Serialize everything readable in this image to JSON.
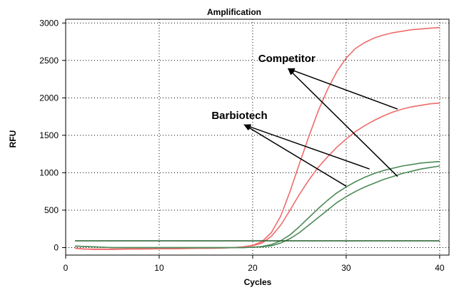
{
  "chart_data": {
    "type": "line",
    "title": "Amplification",
    "xlabel": "Cycles",
    "ylabel": "RFU",
    "xlim": [
      0,
      41
    ],
    "ylim": [
      -100,
      3050
    ],
    "xticks": [
      0,
      10,
      20,
      30,
      40
    ],
    "yticks": [
      0,
      500,
      1000,
      1500,
      2000,
      2500,
      3000
    ],
    "grid": true,
    "x": [
      1,
      2,
      3,
      4,
      5,
      6,
      7,
      8,
      9,
      10,
      11,
      12,
      13,
      14,
      15,
      16,
      17,
      18,
      19,
      20,
      21,
      22,
      23,
      24,
      25,
      26,
      27,
      28,
      29,
      30,
      31,
      32,
      33,
      34,
      35,
      36,
      37,
      38,
      39,
      40
    ],
    "series": [
      {
        "color": "#f06b6b",
        "values": [
          -5,
          -20,
          -25,
          -25,
          -25,
          -22,
          -20,
          -20,
          -18,
          -15,
          -15,
          -15,
          -12,
          -10,
          -10,
          -8,
          -5,
          0,
          10,
          30,
          80,
          200,
          420,
          750,
          1120,
          1480,
          1820,
          2110,
          2350,
          2530,
          2660,
          2740,
          2800,
          2840,
          2870,
          2890,
          2910,
          2920,
          2930,
          2940
        ]
      },
      {
        "color": "#f06b6b",
        "values": [
          -10,
          -20,
          -20,
          -20,
          -20,
          -18,
          -15,
          -15,
          -15,
          -12,
          -12,
          -10,
          -10,
          -10,
          -8,
          -8,
          -5,
          0,
          10,
          25,
          60,
          150,
          300,
          500,
          710,
          900,
          1070,
          1210,
          1340,
          1450,
          1550,
          1630,
          1700,
          1760,
          1810,
          1850,
          1880,
          1900,
          1920,
          1930
        ]
      },
      {
        "color": "#4d8a57",
        "values": [
          20,
          15,
          10,
          5,
          0,
          0,
          0,
          0,
          0,
          0,
          0,
          0,
          0,
          0,
          0,
          0,
          0,
          0,
          0,
          5,
          15,
          40,
          90,
          170,
          280,
          400,
          520,
          630,
          730,
          810,
          880,
          940,
          990,
          1030,
          1060,
          1090,
          1110,
          1130,
          1140,
          1150
        ]
      },
      {
        "color": "#4d8a57",
        "values": [
          20,
          15,
          10,
          5,
          0,
          0,
          0,
          0,
          0,
          0,
          0,
          0,
          0,
          0,
          0,
          0,
          0,
          0,
          0,
          5,
          10,
          25,
          60,
          120,
          200,
          300,
          400,
          500,
          600,
          680,
          750,
          810,
          860,
          910,
          950,
          990,
          1020,
          1050,
          1070,
          1090
        ]
      },
      {
        "color": "#1e5a2a",
        "values": [
          90,
          90,
          90,
          90,
          90,
          90,
          90,
          90,
          90,
          90,
          90,
          90,
          90,
          90,
          90,
          90,
          90,
          90,
          90,
          90,
          90,
          90,
          90,
          90,
          90,
          90,
          90,
          90,
          90,
          90,
          90,
          90,
          90,
          90,
          90,
          90,
          90,
          90,
          90,
          90
        ]
      }
    ],
    "annotations": [
      {
        "text": "Competitor",
        "x": 20.6,
        "y": 2480
      },
      {
        "text": "Barbiotech",
        "x": 15.6,
        "y": 1720
      }
    ],
    "arrows": [
      {
        "from": [
          35.5,
          1850
        ],
        "to": [
          23.8,
          2390
        ]
      },
      {
        "from": [
          35.5,
          950
        ],
        "to": [
          23.8,
          2390
        ]
      },
      {
        "from": [
          32.5,
          1050
        ],
        "to": [
          19.1,
          1640
        ]
      },
      {
        "from": [
          30.0,
          820
        ],
        "to": [
          19.1,
          1640
        ]
      }
    ]
  }
}
